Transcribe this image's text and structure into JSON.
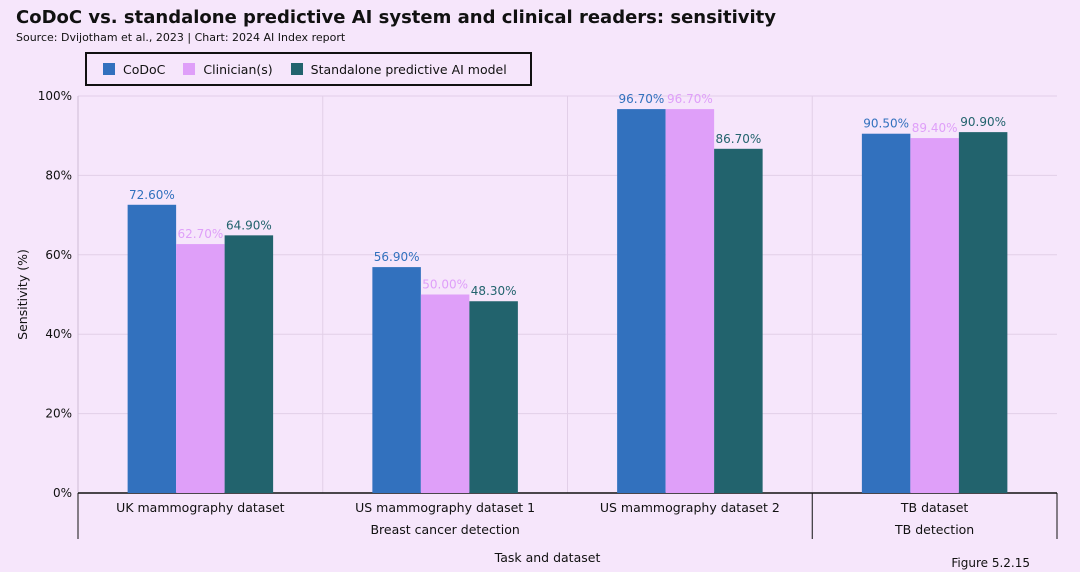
{
  "title": "CoDoC vs. standalone predictive AI system and clinical readers: sensitivity",
  "source": "Source: Dvijotham et al., 2023 | Chart: 2024 AI Index report",
  "figure_label": "Figure 5.2.15",
  "colors": {
    "background": "#f6e6fb",
    "codoc": "#3271be",
    "clinician": "#df9ff9",
    "standalone": "#22636d"
  },
  "chart_data": {
    "type": "bar",
    "categories": [
      "UK mammography dataset",
      "US mammography dataset 1",
      "US mammography dataset 2",
      "TB dataset"
    ],
    "groups": [
      {
        "label": "Breast cancer detection",
        "categories": [
          "UK mammography dataset",
          "US mammography dataset 1",
          "US mammography dataset 2"
        ]
      },
      {
        "label": "TB detection",
        "categories": [
          "TB dataset"
        ]
      }
    ],
    "series": [
      {
        "name": "CoDoC",
        "color": "#3271be",
        "values": [
          72.6,
          56.9,
          96.7,
          90.5
        ],
        "labels": [
          "72.60%",
          "56.90%",
          "96.70%",
          "90.50%"
        ]
      },
      {
        "name": "Clinician(s)",
        "color": "#df9ff9",
        "values": [
          62.7,
          50.0,
          96.7,
          89.4
        ],
        "labels": [
          "62.70%",
          "50.00%",
          "96.70%",
          "89.40%"
        ]
      },
      {
        "name": "Standalone predictive AI model",
        "color": "#22636d",
        "values": [
          64.9,
          48.3,
          86.7,
          90.9
        ],
        "labels": [
          "64.90%",
          "48.30%",
          "86.70%",
          "90.90%"
        ]
      }
    ],
    "xlabel": "Task and dataset",
    "ylabel": "Sensitivity (%)",
    "ylim": [
      0,
      100
    ],
    "yticks": [
      "0%",
      "20%",
      "40%",
      "60%",
      "80%",
      "100%"
    ],
    "legend_position": "top-left",
    "grid": true
  }
}
